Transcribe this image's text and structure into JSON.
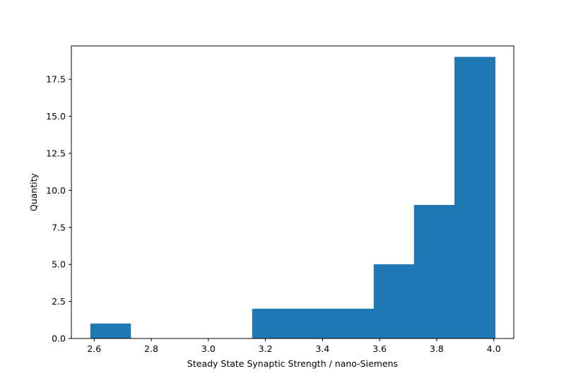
{
  "chart_data": {
    "type": "bar",
    "subtype": "histogram",
    "xlabel": "Steady State Synaptic Strength / nano-Siemens",
    "ylabel": "Quantity",
    "xlim": [
      2.52,
      4.07
    ],
    "ylim": [
      0,
      19.75
    ],
    "grid": false,
    "legend": "none",
    "bins": [
      {
        "x0": 2.587,
        "x1": 2.728,
        "count": 1
      },
      {
        "x0": 2.728,
        "x1": 2.87,
        "count": 0
      },
      {
        "x0": 2.87,
        "x1": 3.012,
        "count": 0
      },
      {
        "x0": 3.012,
        "x1": 3.154,
        "count": 0
      },
      {
        "x0": 3.154,
        "x1": 3.296,
        "count": 2
      },
      {
        "x0": 3.296,
        "x1": 3.438,
        "count": 2
      },
      {
        "x0": 3.438,
        "x1": 3.58,
        "count": 2
      },
      {
        "x0": 3.58,
        "x1": 3.721,
        "count": 5
      },
      {
        "x0": 3.721,
        "x1": 3.863,
        "count": 9
      },
      {
        "x0": 3.863,
        "x1": 4.005,
        "count": 19
      }
    ],
    "bar_color": "#1f77b4",
    "xticks": [
      {
        "value": 2.6,
        "label": "2.6"
      },
      {
        "value": 2.8,
        "label": "2.8"
      },
      {
        "value": 3.0,
        "label": "3.0"
      },
      {
        "value": 3.2,
        "label": "3.2"
      },
      {
        "value": 3.4,
        "label": "3.4"
      },
      {
        "value": 3.6,
        "label": "3.6"
      },
      {
        "value": 3.8,
        "label": "3.8"
      },
      {
        "value": 4.0,
        "label": "4.0"
      }
    ],
    "yticks": [
      {
        "value": 0.0,
        "label": "0.0"
      },
      {
        "value": 2.5,
        "label": "2.5"
      },
      {
        "value": 5.0,
        "label": "5.0"
      },
      {
        "value": 7.5,
        "label": "7.5"
      },
      {
        "value": 10.0,
        "label": "10.0"
      },
      {
        "value": 12.5,
        "label": "12.5"
      },
      {
        "value": 15.0,
        "label": "15.0"
      },
      {
        "value": 17.5,
        "label": "17.5"
      }
    ]
  }
}
